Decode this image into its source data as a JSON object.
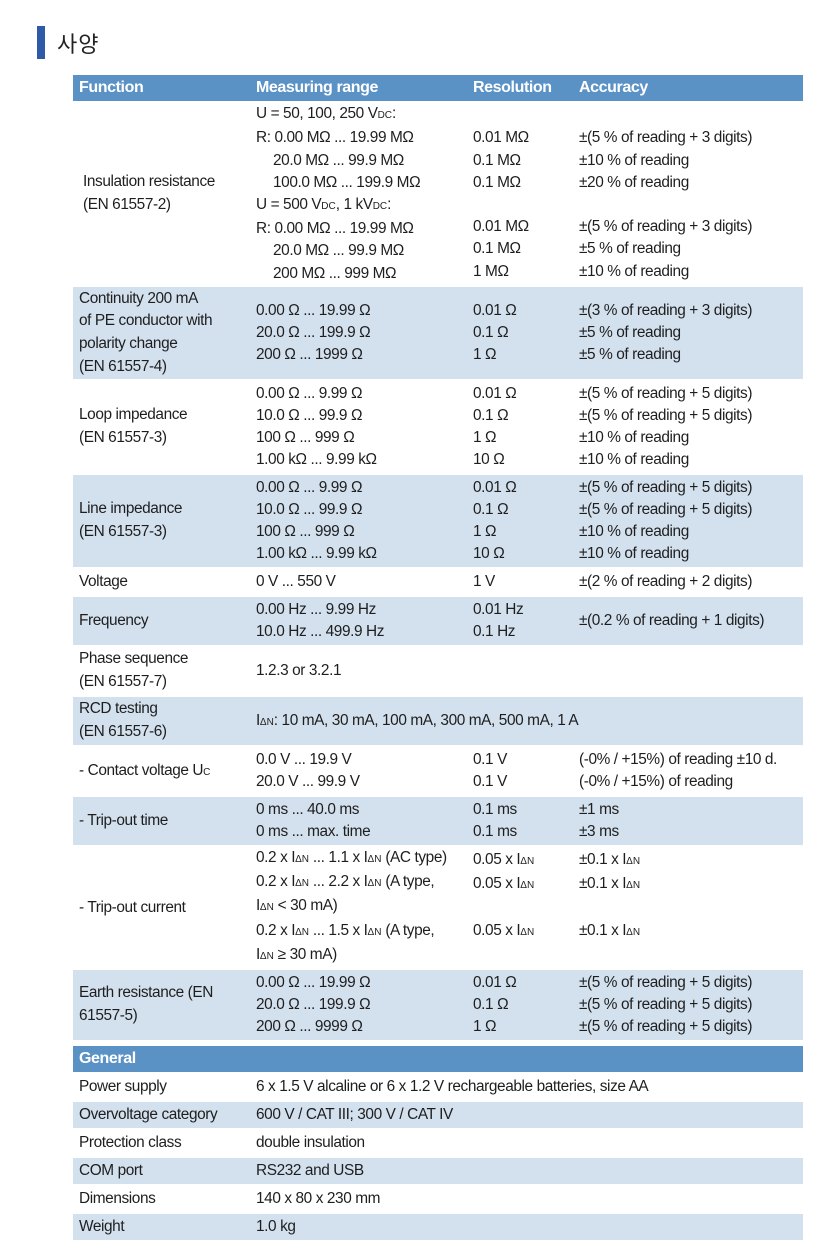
{
  "heading": {
    "title": "사양"
  },
  "header": {
    "function": "Function",
    "range": "Measuring range",
    "resolution": "Resolution",
    "accuracy": "Accuracy"
  },
  "rows": {
    "insulation": {
      "fn": [
        "Insulation resistance",
        "(EN 61557-2)"
      ],
      "range": [
        "U = 50, 100, 250 V",
        "R: 0.00 MΩ ... 19.99 MΩ",
        "20.0 MΩ ... 99.9 MΩ",
        "100.0 MΩ ... 199.9 MΩ",
        "U = 500 V",
        "R: 0.00 MΩ ... 19.99 MΩ",
        "20.0 MΩ ... 99.9 MΩ",
        "200 MΩ ... 999 MΩ"
      ],
      "dc": "DC",
      "dc_tail": ", 1 kV",
      "dc2_tail": ":",
      "resolution": [
        "",
        "0.01 MΩ",
        "0.1 MΩ",
        "0.1 MΩ",
        "",
        "0.01 MΩ",
        "0.1 MΩ",
        "1 MΩ"
      ],
      "accuracy": [
        "",
        "±(5 % of reading + 3 digits)",
        "±10 % of reading",
        "±20 % of reading",
        "",
        "±(5 % of reading + 3 digits)",
        "±5 % of reading",
        "±10 % of reading"
      ]
    },
    "continuity": {
      "fn": [
        "Continuity 200 mA",
        "of PE conductor with",
        "polarity change",
        "(EN 61557-4)"
      ],
      "range": [
        "0.00 Ω ... 19.99 Ω",
        "20.0 Ω ... 199.9 Ω",
        "200 Ω ... 1999 Ω"
      ],
      "resolution": [
        "0.01 Ω",
        "0.1 Ω",
        "1 Ω"
      ],
      "accuracy": [
        "±(3 % of reading + 3 digits)",
        "±5 % of reading",
        "±5 % of reading"
      ]
    },
    "loop": {
      "fn": [
        "Loop impedance",
        "(EN 61557-3)"
      ],
      "range": [
        "0.00 Ω ... 9.99 Ω",
        "10.0 Ω ... 99.9 Ω",
        "100 Ω ... 999 Ω",
        "1.00 kΩ ... 9.99 kΩ"
      ],
      "resolution": [
        "0.01 Ω",
        "0.1 Ω",
        "1 Ω",
        "10 Ω"
      ],
      "accuracy": [
        "±(5 % of reading + 5 digits)",
        "±(5 % of reading + 5 digits)",
        "±10 % of reading",
        "±10 % of reading"
      ]
    },
    "line": {
      "fn": [
        "Line impedance",
        "(EN 61557-3)"
      ],
      "range": [
        "0.00 Ω ... 9.99 Ω",
        "10.0 Ω ... 99.9 Ω",
        "100 Ω ... 999 Ω",
        "1.00 kΩ ... 9.99 kΩ"
      ],
      "resolution": [
        "0.01 Ω",
        "0.1 Ω",
        "1 Ω",
        "10 Ω"
      ],
      "accuracy": [
        "±(5 % of reading + 5 digits)",
        "±(5 % of reading + 5 digits)",
        "±10 % of reading",
        "±10 % of reading"
      ]
    },
    "voltage": {
      "fn": [
        "Voltage"
      ],
      "range": [
        "0 V ... 550 V"
      ],
      "resolution": [
        "1 V"
      ],
      "accuracy": [
        "±(2 % of reading + 2 digits)"
      ]
    },
    "frequency": {
      "fn": [
        "Frequency"
      ],
      "range": [
        "0.00 Hz ... 9.99 Hz",
        "10.0 Hz ... 499.9 Hz"
      ],
      "resolution": [
        "0.01 Hz",
        "0.1 Hz"
      ],
      "accuracy": [
        "±(0.2 % of reading + 1 digits)"
      ]
    },
    "phase": {
      "fn": [
        "Phase sequence",
        "(EN 61557-7)"
      ],
      "range": [
        "1.2.3 or 3.2.1"
      ]
    },
    "rcd": {
      "fn": [
        "RCD testing",
        "(EN 61557-6)"
      ],
      "i": "I",
      "dn": "ΔN",
      "range_tail": ": 10 mA, 30 mA, 100 mA, 300 mA, 500 mA, 1 A"
    },
    "contact": {
      "fn": "- Contact voltage U",
      "fn_sub": "C",
      "range": [
        "0.0 V ... 19.9 V",
        "20.0 V ... 99.9 V"
      ],
      "resolution": [
        "0.1 V",
        "0.1 V"
      ],
      "accuracy": [
        "(-0% / +15%) of reading ±10 d.",
        "(-0% / +15%) of reading"
      ]
    },
    "tripout_time": {
      "fn": [
        "- Trip-out time"
      ],
      "range": [
        "0 ms ... 40.0 ms",
        "0 ms ... max. time"
      ],
      "resolution": [
        "0.1 ms",
        "0.1 ms"
      ],
      "accuracy": [
        "±1 ms",
        "±3 ms"
      ]
    },
    "tripout_current": {
      "fn": [
        "- Trip-out current"
      ],
      "r1a": "0.2 x I",
      "r1b": " ... 1.1 x I",
      "r1c": " (AC type)",
      "r2a": "0.2 x I",
      "r2b": " ... 2.2 x I",
      "r2c": " (A type,",
      "r3a": "I",
      "r3b": " < 30 mA)",
      "r4a": "0.2 x I",
      "r4b": " ... 1.5 x I",
      "r4c": " (A type,",
      "r5a": "I",
      "r5b": " ≥ 30 mA)",
      "res_a": "0.05 x I",
      "acc_a": "±0.1 x I"
    },
    "earth": {
      "fn": [
        "Earth resistance  (EN",
        "61557-5)"
      ],
      "range": [
        "0.00 Ω ... 19.99 Ω",
        "20.0 Ω ... 199.9 Ω",
        "200 Ω ... 9999 Ω"
      ],
      "resolution": [
        "0.01 Ω",
        "0.1 Ω",
        "1 Ω"
      ],
      "accuracy": [
        "±(5 % of reading + 5 digits)",
        "±(5 % of reading + 5 digits)",
        "±(5 % of reading + 5 digits)"
      ]
    }
  },
  "general": {
    "title": "General",
    "items": [
      {
        "label": "Power supply",
        "value": "6 x 1.5 V alcaline or 6 x 1.2 V rechargeable batteries, size AA"
      },
      {
        "label": "Overvoltage category",
        "value": "600 V / CAT III; 300 V / CAT IV"
      },
      {
        "label": "Protection class",
        "value": "double insulation"
      },
      {
        "label": "COM port",
        "value": "RS232 and USB"
      },
      {
        "label": "Dimensions",
        "value": "140 x 80 x 230 mm"
      },
      {
        "label": "Weight",
        "value": "1.0 kg"
      }
    ]
  },
  "colors": {
    "header": "#5b92c6",
    "shade": "#d3e0ee",
    "accent_bar": "#2f5aa8"
  }
}
